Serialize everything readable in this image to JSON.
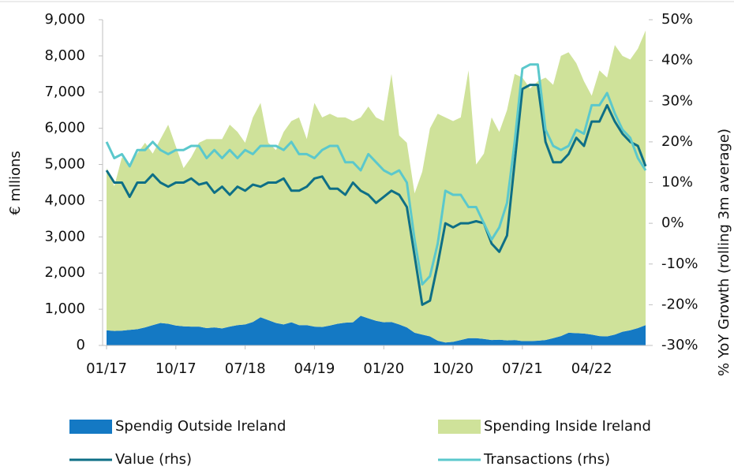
{
  "chart_data": {
    "type": "combo",
    "stacked": true,
    "ylabel": "€ mllions",
    "y2label": "% YoY Growth (rolling 3m average)",
    "categories": [
      "01/17",
      null,
      null,
      null,
      null,
      null,
      null,
      null,
      null,
      "10/17",
      null,
      null,
      null,
      null,
      null,
      null,
      null,
      null,
      "07/18",
      null,
      null,
      null,
      null,
      null,
      null,
      null,
      null,
      "04/19",
      null,
      null,
      null,
      null,
      null,
      null,
      null,
      null,
      "01/20",
      null,
      null,
      null,
      null,
      null,
      null,
      null,
      null,
      "10/20",
      null,
      null,
      null,
      null,
      null,
      null,
      null,
      null,
      "07/21",
      null,
      null,
      null,
      null,
      null,
      null,
      null,
      null,
      "04/22",
      null,
      null,
      null,
      null,
      null,
      null,
      null
    ],
    "ylim": [
      0,
      9000
    ],
    "yticks": [
      0,
      {
        "value": 1000,
        "label": "1,000"
      },
      {
        "value": 2000,
        "label": "2,000"
      },
      {
        "value": 3000,
        "label": "3,000"
      },
      {
        "value": 4000,
        "label": "4,000"
      },
      {
        "value": 5000,
        "label": "5,000"
      },
      {
        "value": 6000,
        "label": "6,000"
      },
      {
        "value": 7000,
        "label": "7,000"
      },
      {
        "value": 8000,
        "label": "8,000"
      },
      {
        "value": 9000,
        "label": "9,000"
      }
    ],
    "y2lim": [
      -30,
      50
    ],
    "y2ticks": [
      {
        "value": -30,
        "label": "-30%"
      },
      {
        "value": -20,
        "label": "-20%"
      },
      {
        "value": -10,
        "label": "-10%"
      },
      {
        "value": 0,
        "label": "0%"
      },
      {
        "value": 10,
        "label": "10%"
      },
      {
        "value": 20,
        "label": "20%"
      },
      {
        "value": 30,
        "label": "30%"
      },
      {
        "value": 40,
        "label": "40%"
      },
      {
        "value": 50,
        "label": "50%"
      }
    ],
    "series": [
      {
        "name": "Spendig Outside Ireland",
        "type": "area",
        "color": "#1479c4",
        "values": [
          420,
          400,
          410,
          430,
          450,
          500,
          560,
          620,
          600,
          550,
          530,
          520,
          520,
          480,
          500,
          470,
          520,
          560,
          580,
          650,
          780,
          700,
          620,
          580,
          640,
          560,
          560,
          520,
          510,
          550,
          600,
          630,
          640,
          820,
          750,
          680,
          640,
          650,
          580,
          500,
          350,
          300,
          250,
          130,
          80,
          100,
          150,
          200,
          200,
          180,
          150,
          160,
          140,
          150,
          120,
          120,
          130,
          150,
          200,
          260,
          350,
          340,
          330,
          300,
          260,
          250,
          300,
          380,
          420,
          480,
          560
        ]
      },
      {
        "name": "Spending Inside Ireland",
        "type": "area",
        "color": "#cfe29a",
        "values": [
          4480,
          4000,
          4790,
          4570,
          4850,
          5100,
          4740,
          5080,
          5500,
          4950,
          4370,
          4680,
          5080,
          5220,
          5200,
          5230,
          5580,
          5340,
          5020,
          5650,
          5920,
          4900,
          4780,
          5320,
          5560,
          5740,
          5140,
          6180,
          5790,
          5850,
          5700,
          5670,
          5560,
          5480,
          5850,
          5620,
          5560,
          6850,
          5220,
          5100,
          3850,
          4500,
          5750,
          6270,
          6220,
          6100,
          6150,
          7400,
          4800,
          5120,
          6150,
          5740,
          6360,
          7350,
          7280,
          6980,
          7170,
          7250,
          7000,
          7740,
          7750,
          7460,
          6970,
          6600,
          7340,
          7150,
          8000,
          7620,
          7480,
          7720,
          8140
        ]
      },
      {
        "name": "Value (rhs)",
        "type": "line",
        "axis": "y2",
        "color": "#0e6f86",
        "values": [
          13,
          10,
          10,
          6.5,
          10,
          10,
          12,
          10,
          9,
          10,
          10,
          11,
          9.5,
          10,
          7.5,
          9,
          7,
          9,
          8,
          9.5,
          9,
          10,
          10,
          11,
          8,
          8,
          9,
          11,
          11.5,
          8.5,
          8.5,
          7,
          10,
          8,
          7,
          5,
          6.5,
          8,
          7,
          4,
          -8,
          -20,
          -19,
          -10,
          0,
          -1,
          0,
          0,
          0.5,
          0,
          -5,
          -7,
          -3,
          15,
          33,
          34,
          34,
          20,
          15,
          15,
          17,
          21,
          19,
          25,
          25,
          29,
          25,
          22,
          20,
          19,
          14
        ]
      },
      {
        "name": "Transactions (rhs)",
        "type": "line",
        "axis": "y2",
        "color": "#5bc8cc",
        "values": [
          20,
          16,
          17,
          14,
          18,
          18,
          20,
          18,
          17,
          18,
          18,
          19,
          19,
          16,
          18,
          16,
          18,
          16,
          18,
          17,
          19,
          19,
          19,
          18,
          20,
          17,
          17,
          16,
          18,
          19,
          19,
          15,
          15,
          13,
          17,
          15,
          13,
          12,
          13,
          10,
          -4,
          -15,
          -13,
          -5,
          8,
          7,
          7,
          4,
          4,
          0,
          -4,
          -1,
          5,
          20,
          38,
          39,
          39,
          23,
          19,
          18,
          19,
          23,
          22,
          29,
          29,
          32,
          27,
          23,
          21,
          16,
          13
        ]
      }
    ]
  }
}
